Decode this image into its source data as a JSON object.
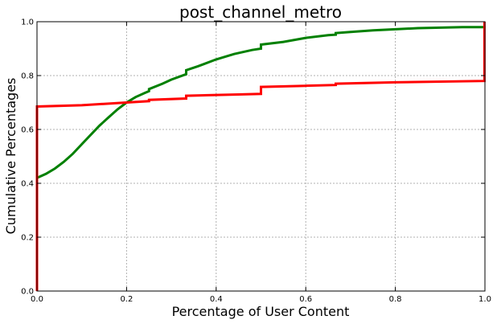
{
  "chart_data": {
    "type": "line",
    "title": "post_channel_metro",
    "xlabel": "Percentage of User Content",
    "ylabel": "Cumulative Percentages",
    "xlim": [
      0,
      1
    ],
    "ylim": [
      0,
      1
    ],
    "grid": true,
    "x_ticks": [
      "0.0",
      "0.2",
      "0.4",
      "0.6",
      "0.8",
      "1.0"
    ],
    "y_ticks": [
      "0.0",
      "0.2",
      "0.4",
      "0.6",
      "0.8",
      "1.0"
    ],
    "series": [
      {
        "color": "#008000",
        "x": [
          0,
          0.02,
          0.04,
          0.06,
          0.08,
          0.1,
          0.12,
          0.14,
          0.16,
          0.18,
          0.2,
          0.22,
          0.24,
          0.25,
          0.25,
          0.28,
          0.3,
          0.333,
          0.333,
          0.36,
          0.4,
          0.44,
          0.48,
          0.5,
          0.5,
          0.55,
          0.6,
          0.65,
          0.667,
          0.667,
          0.7,
          0.75,
          0.8,
          0.85,
          0.9,
          0.95,
          0.999
        ],
        "y": [
          0.42,
          0.435,
          0.455,
          0.48,
          0.51,
          0.545,
          0.58,
          0.615,
          0.645,
          0.675,
          0.7,
          0.72,
          0.735,
          0.742,
          0.75,
          0.77,
          0.785,
          0.805,
          0.82,
          0.835,
          0.86,
          0.88,
          0.895,
          0.9,
          0.915,
          0.925,
          0.94,
          0.95,
          0.952,
          0.958,
          0.962,
          0.968,
          0.972,
          0.976,
          0.978,
          0.98,
          0.98
        ]
      },
      {
        "color": "#ff0000",
        "x": [
          0,
          0,
          0.1,
          0.2,
          0.25,
          0.25,
          0.333,
          0.333,
          0.45,
          0.5,
          0.5,
          0.6,
          0.667,
          0.667,
          0.8,
          0.999,
          0.999
        ],
        "y": [
          0,
          0.685,
          0.69,
          0.7,
          0.705,
          0.71,
          0.715,
          0.725,
          0.73,
          0.732,
          0.758,
          0.762,
          0.765,
          0.77,
          0.775,
          0.78,
          1.0
        ]
      }
    ]
  }
}
